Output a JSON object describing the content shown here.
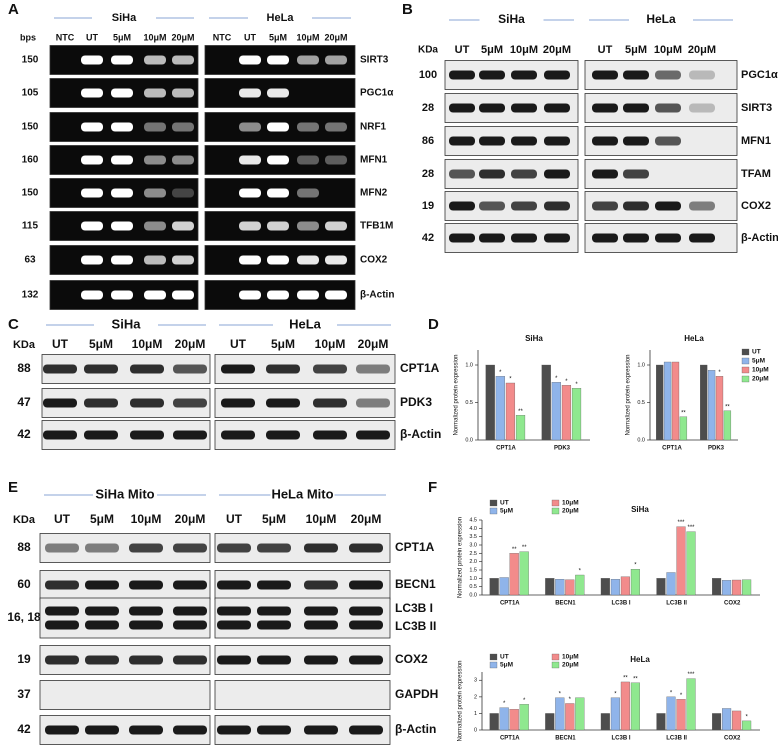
{
  "panel_labels": [
    "A",
    "B",
    "C",
    "D",
    "E",
    "F"
  ],
  "panel_a": {
    "unit": "bps",
    "groups": [
      "SiHa",
      "HeLa"
    ],
    "lanes": [
      "NTC",
      "UT",
      "5μM",
      "10μM",
      "20μM"
    ],
    "rows": [
      {
        "size": "150",
        "labels": [
          "SIRT3"
        ]
      },
      {
        "size": "105",
        "labels": [
          "PGC1α"
        ]
      },
      {
        "size": "150",
        "labels": [
          "NRF1"
        ]
      },
      {
        "size": "160",
        "labels": [
          "MFN1"
        ]
      },
      {
        "size": "150",
        "labels": [
          "MFN2"
        ]
      },
      {
        "size": "115",
        "labels": [
          "TFB1M"
        ]
      },
      {
        "size": "63",
        "labels": [
          "COX2"
        ]
      },
      {
        "size": "132",
        "labels": [
          "β-Actin"
        ]
      }
    ]
  },
  "panel_b": {
    "unit": "KDa",
    "groups": [
      "SiHa",
      "HeLa"
    ],
    "lanes": [
      "UT",
      "5μM",
      "10μM",
      "20μM"
    ],
    "rows": [
      {
        "size": "100",
        "labels": [
          "PGC1α"
        ]
      },
      {
        "size": "28",
        "labels": [
          "SIRT3"
        ]
      },
      {
        "size": "86",
        "labels": [
          "MFN1"
        ]
      },
      {
        "size": "28",
        "labels": [
          "TFAM"
        ]
      },
      {
        "size": "19",
        "labels": [
          "COX2"
        ]
      },
      {
        "size": "42",
        "labels": [
          "β-Actin"
        ]
      }
    ]
  },
  "panel_c": {
    "unit": "KDa",
    "groups": [
      "SiHa",
      "HeLa"
    ],
    "lanes": [
      "UT",
      "5μM",
      "10μM",
      "20μM"
    ],
    "rows": [
      {
        "size": "88",
        "labels": [
          "CPT1A"
        ]
      },
      {
        "size": "47",
        "labels": [
          "PDK3"
        ]
      },
      {
        "size": "42",
        "labels": [
          "β-Actin"
        ]
      }
    ]
  },
  "panel_e": {
    "unit": "KDa",
    "groups": [
      "SiHa Mito",
      "HeLa Mito"
    ],
    "lanes": [
      "UT",
      "5μM",
      "10μM",
      "20μM"
    ],
    "rows": [
      {
        "size": "88",
        "labels": [
          "CPT1A"
        ]
      },
      {
        "size": "60",
        "labels": [
          "BECN1"
        ]
      },
      {
        "size": "16, 18",
        "labels": [
          "LC3B I",
          "LC3B II"
        ]
      },
      {
        "size": "19",
        "labels": [
          "COX2"
        ]
      },
      {
        "size": "37",
        "labels": [
          "GAPDH"
        ]
      },
      {
        "size": "42",
        "labels": [
          "β-Actin"
        ]
      }
    ]
  },
  "chart_data": [
    {
      "type": "bar",
      "title": "SiHa",
      "y_label": "Normalized protein expression",
      "categories": [
        "CPT1A",
        "PDK3"
      ],
      "legend": false,
      "ylim": [
        0,
        1.2
      ],
      "yticks": [
        {
          "value": 0,
          "label": "0.0"
        },
        {
          "value": 0.5,
          "label": "0.5"
        },
        {
          "value": 1,
          "label": "1.0"
        }
      ],
      "series": [
        {
          "name": "UT",
          "color": "#4d4d4d",
          "values": [
            1,
            1
          ],
          "marks": [
            null,
            null
          ]
        },
        {
          "name": "5μM",
          "color": "#8fb4ea",
          "values": [
            0.85,
            0.77
          ],
          "marks": [
            "*",
            "*"
          ]
        },
        {
          "name": "10μM",
          "color": "#f28b8b",
          "values": [
            0.76,
            0.73
          ],
          "marks": [
            "*",
            "*"
          ]
        },
        {
          "name": "20μM",
          "color": "#8fe88f",
          "values": [
            0.33,
            0.69
          ],
          "marks": [
            "**",
            "*"
          ]
        }
      ]
    },
    {
      "type": "bar",
      "title": "HeLa",
      "y_label": "Normalized protein expression",
      "categories": [
        "CPT1A",
        "PDK3"
      ],
      "legend": "right",
      "ylim": [
        0,
        1.2
      ],
      "yticks": [
        {
          "value": 0,
          "label": "0.0"
        },
        {
          "value": 0.5,
          "label": "0.5"
        },
        {
          "value": 1,
          "label": "1.0"
        }
      ],
      "series": [
        {
          "name": "UT",
          "color": "#4d4d4d",
          "values": [
            1,
            1
          ],
          "marks": [
            null,
            null
          ]
        },
        {
          "name": "5μM",
          "color": "#8fb4ea",
          "values": [
            1.04,
            0.93
          ],
          "marks": [
            null,
            null
          ]
        },
        {
          "name": "10μM",
          "color": "#f28b8b",
          "values": [
            1.04,
            0.85
          ],
          "marks": [
            null,
            "*"
          ]
        },
        {
          "name": "20μM",
          "color": "#8fe88f",
          "values": [
            0.31,
            0.39
          ],
          "marks": [
            "**",
            "**"
          ]
        }
      ]
    },
    {
      "type": "bar",
      "title": "SiHa",
      "y_label": "Normalized protein expression",
      "categories": [
        "CPT1A",
        "BECN1",
        "LC3B I",
        "LC3B II",
        "COX2"
      ],
      "legend": "top-left",
      "ylim": [
        0,
        4.5
      ],
      "yticks": [
        {
          "value": 0,
          "label": "0.0"
        },
        {
          "value": 0.5,
          "label": "0.5"
        },
        {
          "value": 1,
          "label": "1.0"
        },
        {
          "value": 1.5,
          "label": "1.5"
        },
        {
          "value": 2,
          "label": "2.0"
        },
        {
          "value": 2.5,
          "label": "2.5"
        },
        {
          "value": 3,
          "label": "3.0"
        },
        {
          "value": 3.5,
          "label": "3.5"
        },
        {
          "value": 4,
          "label": "4.0"
        },
        {
          "value": 4.5,
          "label": "4.5"
        }
      ],
      "series": [
        {
          "name": "UT",
          "color": "#4d4d4d",
          "values": [
            1,
            1,
            1,
            1,
            1
          ],
          "marks": [
            null,
            null,
            null,
            null,
            null
          ]
        },
        {
          "name": "5μM",
          "color": "#8fb4ea",
          "values": [
            1.05,
            0.95,
            0.95,
            1.35,
            0.88
          ],
          "marks": [
            null,
            null,
            null,
            null,
            null
          ]
        },
        {
          "name": "10μM",
          "color": "#f28b8b",
          "values": [
            2.5,
            0.92,
            1.1,
            4.1,
            0.9
          ],
          "marks": [
            "**",
            null,
            null,
            "***",
            null
          ]
        },
        {
          "name": "20μM",
          "color": "#8fe88f",
          "values": [
            2.6,
            1.2,
            1.55,
            3.8,
            0.92
          ],
          "marks": [
            "**",
            "*",
            "*",
            "***",
            null
          ]
        }
      ]
    },
    {
      "type": "bar",
      "title": "HeLa",
      "y_label": "Normalized protein expression",
      "categories": [
        "CPT1A",
        "BECN1",
        "LC3B I",
        "LC3B II",
        "COX2"
      ],
      "legend": "top-left",
      "ylim": [
        0,
        3.5
      ],
      "yticks": [
        0,
        1,
        2,
        3
      ],
      "series": [
        {
          "name": "UT",
          "color": "#4d4d4d",
          "values": [
            1,
            1,
            1,
            1,
            1
          ],
          "marks": [
            null,
            null,
            null,
            null,
            null
          ]
        },
        {
          "name": "5μM",
          "color": "#8fb4ea",
          "values": [
            1.35,
            1.95,
            1.95,
            2.0,
            1.3
          ],
          "marks": [
            "*",
            "*",
            "*",
            "*",
            null
          ]
        },
        {
          "name": "10μM",
          "color": "#f28b8b",
          "values": [
            1.25,
            1.6,
            2.9,
            1.85,
            1.15
          ],
          "marks": [
            null,
            "*",
            "**",
            "*",
            null
          ]
        },
        {
          "name": "20μM",
          "color": "#8fe88f",
          "values": [
            1.55,
            1.95,
            2.85,
            3.1,
            0.55
          ],
          "marks": [
            "*",
            null,
            "**",
            "***",
            "*"
          ]
        }
      ]
    }
  ]
}
